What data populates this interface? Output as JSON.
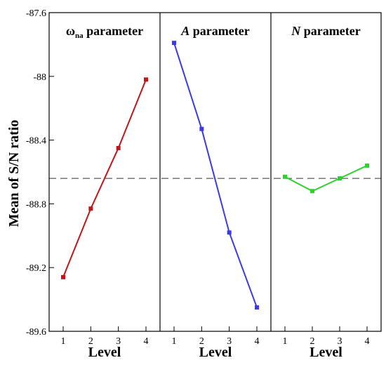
{
  "chart_data": {
    "type": "line",
    "ylabel": "Mean of S/N ratio",
    "xlabel": "Level",
    "ylim": [
      -89.6,
      -87.6
    ],
    "yticks": [
      -87.6,
      -88,
      -88.4,
      -88.8,
      -89.2,
      -89.6
    ],
    "ytick_labels": [
      "-87.6",
      "-88",
      "-88.4",
      "-88.8",
      "-89.2",
      "-89.6"
    ],
    "reference_line": {
      "value": -88.64,
      "style": "dashed"
    },
    "panels": [
      {
        "title_main": "ω",
        "title_sub": "na",
        "title_rest": " parameter",
        "categories": [
          "1",
          "2",
          "3",
          "4"
        ],
        "values": [
          -89.26,
          -88.83,
          -88.45,
          -88.02
        ],
        "color": "#c0161a"
      },
      {
        "title_main": "A",
        "title_sub": "",
        "title_rest": " parameter",
        "categories": [
          "1",
          "2",
          "3",
          "4"
        ],
        "values": [
          -87.79,
          -88.33,
          -88.98,
          -89.45
        ],
        "color": "#3a3ae6"
      },
      {
        "title_main": "N",
        "title_sub": "",
        "title_rest": " parameter",
        "categories": [
          "1",
          "2",
          "3",
          "4"
        ],
        "values": [
          -88.63,
          -88.72,
          -88.64,
          -88.56
        ],
        "color": "#2fd12f"
      }
    ]
  }
}
